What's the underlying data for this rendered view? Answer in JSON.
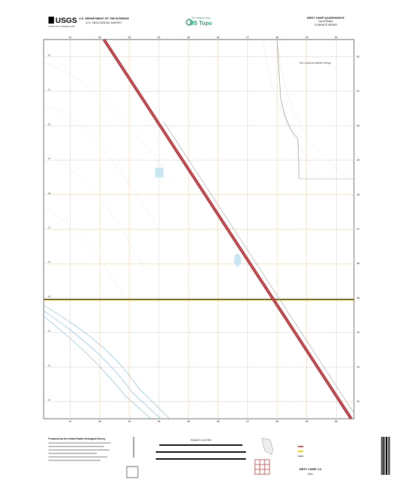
{
  "header": {
    "agency": "U.S. DEPARTMENT OF THE INTERIOR",
    "survey": "U.S. GEOLOGICAL SURVEY",
    "logo": "USGS",
    "tagline": "science for a changing world",
    "national_map": "The National Map",
    "product": "US Topo",
    "quad_title": "WEST CAMP QUADRANGLE",
    "state": "CALIFORNIA",
    "series": "7.5-MINUTE SERIES"
  },
  "map": {
    "top_ticks": [
      "41",
      "42",
      "43",
      "44",
      "45",
      "46",
      "47",
      "48",
      "49",
      "50"
    ],
    "bottom_ticks": [
      "41",
      "42",
      "43",
      "44",
      "45",
      "46",
      "47",
      "48",
      "49",
      "50"
    ],
    "left_ticks": [
      "52",
      "51",
      "50",
      "49",
      "48",
      "47",
      "46",
      "45",
      "44",
      "43",
      "42"
    ],
    "right_ticks": [
      "52",
      "51",
      "50",
      "49",
      "48",
      "47",
      "46",
      "45",
      "44",
      "43",
      "42"
    ],
    "labels": [
      "Kern National Wildlife Refuge"
    ]
  },
  "footer": {
    "producer": "Produced by the United States Geological Survey",
    "scale": "SCALE 1:24 000",
    "quad_name": "WEST CAMP, CA",
    "year": "2021"
  }
}
